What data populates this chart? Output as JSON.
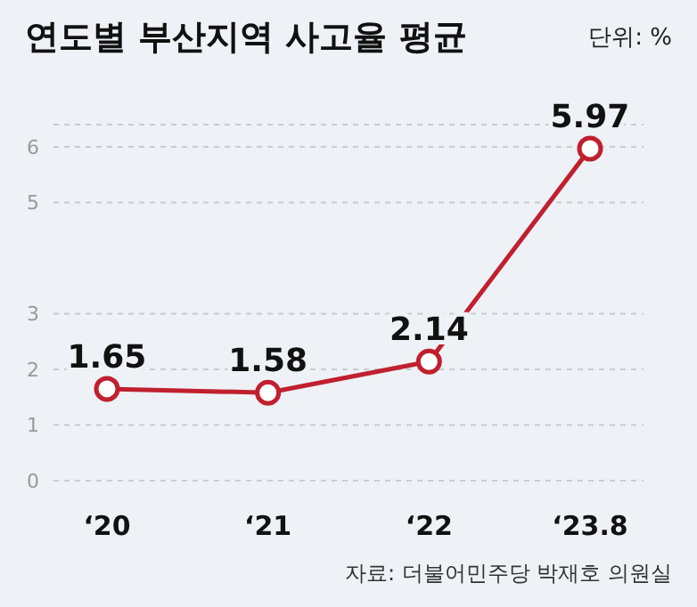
{
  "chart_data": {
    "type": "line",
    "title": "연도별 부산지역 사고율 평균",
    "categories": [
      "‘20",
      "‘21",
      "‘22",
      "‘23.8"
    ],
    "series": [
      {
        "color": "#c0202e",
        "values": [
          1.65,
          1.58,
          2.14,
          5.97
        ]
      }
    ],
    "ylim": [
      0,
      6.4
    ],
    "yticks": [
      0,
      1,
      2,
      3,
      5,
      6
    ],
    "grid": "y",
    "marker": "circle",
    "data_labels": true,
    "annotations": [
      "단위: %",
      "자료: 더불어민주당 박재호 의원실"
    ]
  }
}
